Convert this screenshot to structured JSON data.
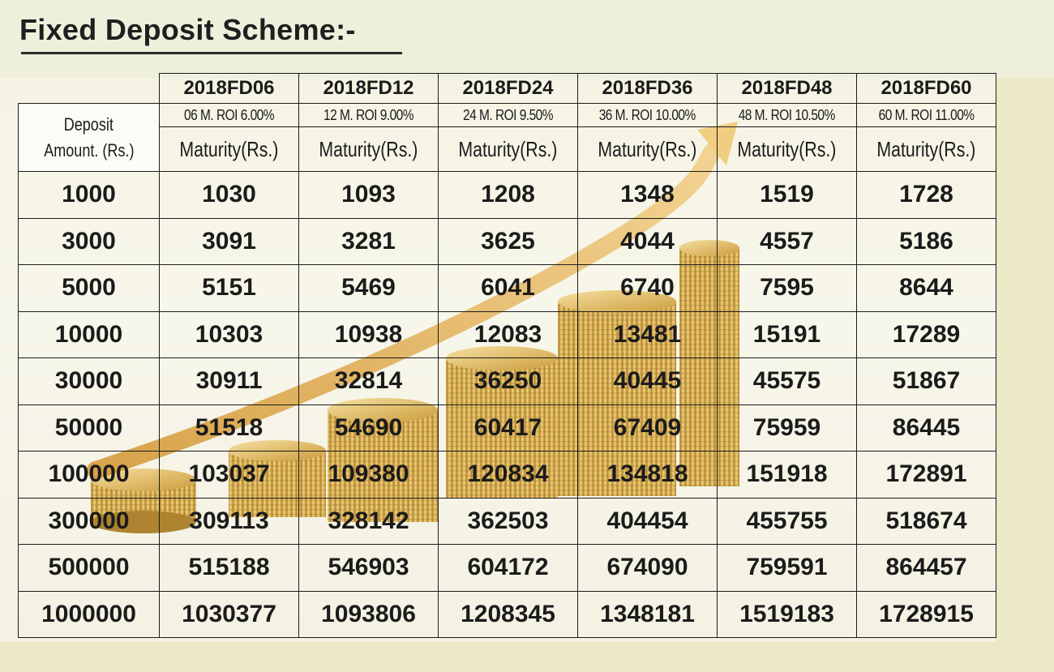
{
  "title": "Fixed Deposit Scheme:-",
  "colors": {
    "text": "#1b1b1b",
    "gold": "#d9a93c",
    "background": "#f5f4e4"
  },
  "decoration": [
    "gold-coin-stacks",
    "rising-arrow"
  ],
  "table": {
    "deposit_header": [
      "Deposit",
      "Amount. (Rs.)"
    ],
    "schemes": [
      {
        "code": "2018FD06",
        "roi": "06 M. ROI 6.00%",
        "maturity": "Maturity(Rs.)"
      },
      {
        "code": "2018FD12",
        "roi": "12 M. ROI 9.00%",
        "maturity": "Maturity(Rs.)"
      },
      {
        "code": "2018FD24",
        "roi": "24 M. ROI 9.50%",
        "maturity": "Maturity(Rs.)"
      },
      {
        "code": "2018FD36",
        "roi": "36 M. ROI 10.00%",
        "maturity": "Maturity(Rs.)"
      },
      {
        "code": "2018FD48",
        "roi": "48 M. ROI 10.50%",
        "maturity": "Maturity(Rs.)"
      },
      {
        "code": "2018FD60",
        "roi": "60 M. ROI 11.00%",
        "maturity": "Maturity(Rs.)"
      }
    ],
    "rows": [
      {
        "amount": "1000",
        "values": [
          "1030",
          "1093",
          "1208",
          "1348",
          "1519",
          "1728"
        ]
      },
      {
        "amount": "3000",
        "values": [
          "3091",
          "3281",
          "3625",
          "4044",
          "4557",
          "5186"
        ]
      },
      {
        "amount": "5000",
        "values": [
          "5151",
          "5469",
          "6041",
          "6740",
          "7595",
          "8644"
        ]
      },
      {
        "amount": "10000",
        "values": [
          "10303",
          "10938",
          "12083",
          "13481",
          "15191",
          "17289"
        ]
      },
      {
        "amount": "30000",
        "values": [
          "30911",
          "32814",
          "36250",
          "40445",
          "45575",
          "51867"
        ]
      },
      {
        "amount": "50000",
        "values": [
          "51518",
          "54690",
          "60417",
          "67409",
          "75959",
          "86445"
        ]
      },
      {
        "amount": "100000",
        "values": [
          "103037",
          "109380",
          "120834",
          "134818",
          "151918",
          "172891"
        ]
      },
      {
        "amount": "300000",
        "values": [
          "309113",
          "328142",
          "362503",
          "404454",
          "455755",
          "518674"
        ]
      },
      {
        "amount": "500000",
        "values": [
          "515188",
          "546903",
          "604172",
          "674090",
          "759591",
          "864457"
        ]
      },
      {
        "amount": "1000000",
        "values": [
          "1030377",
          "1093806",
          "1208345",
          "1348181",
          "1519183",
          "1728915"
        ]
      }
    ]
  }
}
